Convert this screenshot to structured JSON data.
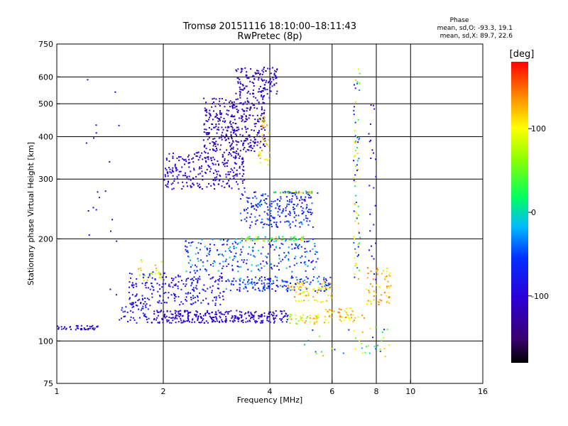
{
  "chart_data": {
    "type": "scatter",
    "title_line1": "Tromsø 20151116 18:10:00–18:11:43",
    "title_line2": "RwPretec (8p)",
    "xlabel": "Frequency [MHz]",
    "ylabel": "Stationary phase Virtual Height [km]",
    "x_scale": "log",
    "y_scale": "log",
    "xlim": [
      1,
      16
    ],
    "ylim": [
      75,
      750
    ],
    "xticks": [
      {
        "v": 1,
        "label": "1"
      },
      {
        "v": 2,
        "label": "2"
      },
      {
        "v": 4,
        "label": "4"
      },
      {
        "v": 6,
        "label": "6"
      },
      {
        "v": 8,
        "label": "8"
      },
      {
        "v": 10,
        "label": "10"
      },
      {
        "v": 16,
        "label": "16"
      }
    ],
    "yticks": [
      {
        "v": 75,
        "label": "75"
      },
      {
        "v": 100,
        "label": "100"
      },
      {
        "v": 200,
        "label": "200"
      },
      {
        "v": 300,
        "label": "300"
      },
      {
        "v": 400,
        "label": "400"
      },
      {
        "v": 500,
        "label": "500"
      },
      {
        "v": 600,
        "label": "600"
      },
      {
        "v": 750,
        "label": "750"
      }
    ],
    "grid_x": [
      2,
      4,
      6,
      8,
      10
    ],
    "grid_y": [
      100,
      200,
      300,
      400,
      500,
      600
    ],
    "stats_title": "Phase",
    "stats_line1": "mean, sd,O: -93.3, 19.1",
    "stats_line2": "mean, sd,X: 89.7, 22.6",
    "colorbar": {
      "label": "[deg]",
      "min": -180,
      "max": 180,
      "ticks": [
        {
          "v": 100,
          "label": "100"
        },
        {
          "v": 0,
          "label": "0"
        },
        {
          "v": -100,
          "label": "-100"
        }
      ],
      "colormap": "rainbow (black-purple-blue-cyan-green-yellow-red)"
    },
    "series": [
      {
        "clusters": [
          {
            "x": [
              1.0,
              1.32
            ],
            "y": [
              108,
              111
            ],
            "phase": [
              -100,
              -90
            ],
            "n": 45
          },
          {
            "x": [
              1.5,
              1.85
            ],
            "y": [
              113,
              130
            ],
            "phase": [
              -110,
              -60
            ],
            "n": 50
          },
          {
            "x": [
              1.85,
              4.5
            ],
            "y": [
              113,
              123
            ],
            "phase": [
              -120,
              -90
            ],
            "n": 300
          },
          {
            "x": [
              4.5,
              5.5
            ],
            "y": [
              112,
              120
            ],
            "phase": [
              40,
              140
            ],
            "n": 40
          },
          {
            "x": [
              5.7,
              7.4
            ],
            "y": [
              113,
              125
            ],
            "phase": [
              80,
              150
            ],
            "n": 50
          },
          {
            "x": [
              1.6,
              3.0
            ],
            "y": [
              127,
              160
            ],
            "phase": [
              -110,
              -60
            ],
            "n": 220
          },
          {
            "x": [
              3.0,
              6.0
            ],
            "y": [
              140,
              155
            ],
            "phase": [
              -100,
              -20
            ],
            "n": 170
          },
          {
            "x": [
              1.7,
              2.0
            ],
            "y": [
              150,
              175
            ],
            "phase": [
              60,
              130
            ],
            "n": 25
          },
          {
            "x": [
              4.5,
              6.0
            ],
            "y": [
              130,
              150
            ],
            "phase": [
              80,
              150
            ],
            "n": 70
          },
          {
            "x": [
              7.5,
              8.8
            ],
            "y": [
              128,
              165
            ],
            "phase": [
              90,
              150
            ],
            "n": 60
          },
          {
            "x": [
              2.3,
              5.5
            ],
            "y": [
              160,
              200
            ],
            "phase": [
              -110,
              0
            ],
            "n": 240
          },
          {
            "x": [
              3.3,
              5.0
            ],
            "y": [
              197,
              203
            ],
            "phase": [
              -40,
              140
            ],
            "n": 60
          },
          {
            "x": [
              3.3,
              5.3
            ],
            "y": [
              215,
              275
            ],
            "phase": [
              -110,
              -30
            ],
            "n": 220
          },
          {
            "x": [
              4.1,
              5.5
            ],
            "y": [
              272,
              276
            ],
            "phase": [
              -100,
              150
            ],
            "n": 45
          },
          {
            "x": [
              2.0,
              3.4
            ],
            "y": [
              280,
              360
            ],
            "phase": [
              -120,
              -90
            ],
            "n": 260
          },
          {
            "x": [
              2.6,
              3.9
            ],
            "y": [
              360,
              520
            ],
            "phase": [
              -140,
              -90
            ],
            "n": 360
          },
          {
            "x": [
              3.2,
              4.2
            ],
            "y": [
              520,
              640
            ],
            "phase": [
              -130,
              -80
            ],
            "n": 140
          },
          {
            "x": [
              3.7,
              4.0
            ],
            "y": [
              330,
              460
            ],
            "phase": [
              80,
              150
            ],
            "n": 40
          },
          {
            "x": [
              6.9,
              7.2
            ],
            "y": [
              150,
              640
            ],
            "phase": [
              -100,
              140
            ],
            "n": 80
          },
          {
            "x": [
              7.6,
              8.0
            ],
            "y": [
              150,
              500
            ],
            "phase": [
              -100,
              -80
            ],
            "n": 25
          },
          {
            "x": [
              1.2,
              1.5
            ],
            "y": [
              130,
              650
            ],
            "phase": [
              -110,
              -90
            ],
            "n": 20
          },
          {
            "x": [
              5.0,
              9.0
            ],
            "y": [
              90,
              110
            ],
            "phase": [
              -80,
              130
            ],
            "n": 40
          }
        ]
      }
    ]
  }
}
